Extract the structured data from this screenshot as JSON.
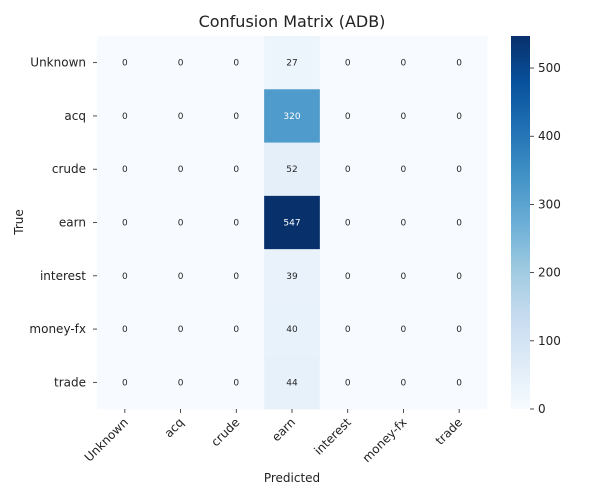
{
  "chart_data": {
    "type": "heatmap",
    "title": "Confusion Matrix (ADB)",
    "xlabel": "Predicted",
    "ylabel": "True",
    "x_categories": [
      "Unknown",
      "acq",
      "crude",
      "earn",
      "interest",
      "money-fx",
      "trade"
    ],
    "y_categories": [
      "Unknown",
      "acq",
      "crude",
      "earn",
      "interest",
      "money-fx",
      "trade"
    ],
    "values": [
      [
        0,
        0,
        0,
        27,
        0,
        0,
        0
      ],
      [
        0,
        0,
        0,
        320,
        0,
        0,
        0
      ],
      [
        0,
        0,
        0,
        52,
        0,
        0,
        0
      ],
      [
        0,
        0,
        0,
        547,
        0,
        0,
        0
      ],
      [
        0,
        0,
        0,
        39,
        0,
        0,
        0
      ],
      [
        0,
        0,
        0,
        40,
        0,
        0,
        0
      ],
      [
        0,
        0,
        0,
        44,
        0,
        0,
        0
      ]
    ],
    "colormap": "Blues",
    "color_range": [
      0,
      547
    ],
    "colorbar_ticks": [
      0,
      100,
      200,
      300,
      400,
      500
    ],
    "colorbar_tick_labels": [
      "0",
      "100",
      "200",
      "300",
      "400",
      "500"
    ]
  }
}
